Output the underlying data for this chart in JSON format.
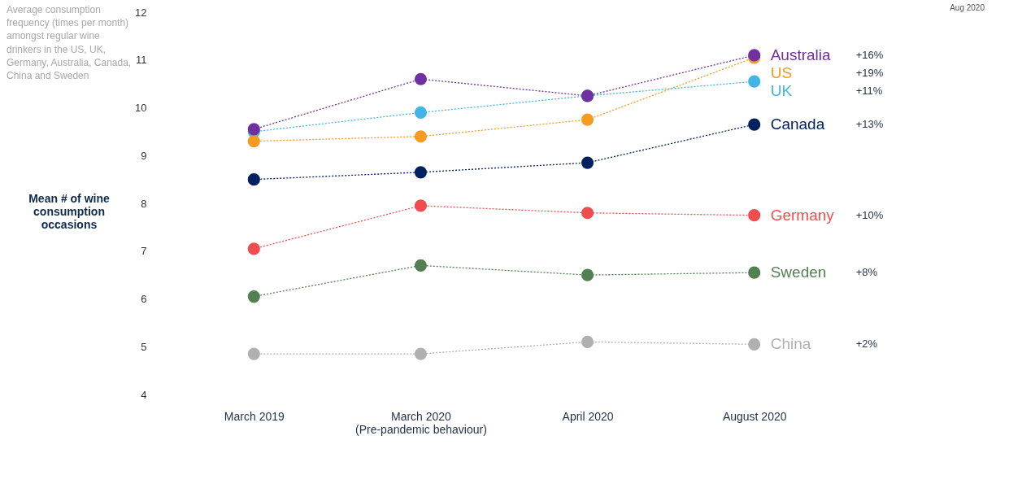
{
  "chart_data": {
    "type": "line",
    "subtitle": "Average consumption frequency (times per month) amongst regular wine drinkers in the US, UK, Germany, Australia, Canada, China and Sweden",
    "ylabel": "Mean # of wine consumption occasions",
    "categories": [
      "March 2019",
      "March 2020 (Pre-pandemic behaviour)",
      "April 2020",
      "August 2020"
    ],
    "series": [
      {
        "name": "Australia",
        "color": "#7030a0",
        "values": [
          9.55,
          10.6,
          10.25,
          11.1
        ]
      },
      {
        "name": "US",
        "color": "#f59a23",
        "values": [
          9.3,
          9.4,
          9.75,
          11.05
        ]
      },
      {
        "name": "UK",
        "color": "#41b6e6",
        "values": [
          9.5,
          9.9,
          10.25,
          10.55
        ]
      },
      {
        "name": "Canada",
        "color": "#002060",
        "values": [
          8.5,
          8.65,
          8.85,
          9.65
        ]
      },
      {
        "name": "Germany",
        "color": "#f04e4e",
        "values": [
          7.05,
          7.95,
          7.8,
          7.75
        ]
      },
      {
        "name": "Sweden",
        "color": "#538050",
        "values": [
          6.05,
          6.7,
          6.5,
          6.55
        ]
      },
      {
        "name": "China",
        "color": "#b0b0b0",
        "values": [
          4.85,
          4.85,
          5.1,
          5.05
        ]
      }
    ],
    "annotations": [
      "Aug 2020",
      "+16%",
      "+19%",
      "+11%",
      "+13%",
      "+10%",
      "+8%",
      "+2%"
    ],
    "ylim": [
      4,
      12
    ],
    "yticks": [
      4,
      5,
      6,
      7,
      8,
      9,
      10,
      11,
      12
    ],
    "grid": false,
    "legend": false,
    "marker": "circle",
    "line_style": "dotted"
  }
}
